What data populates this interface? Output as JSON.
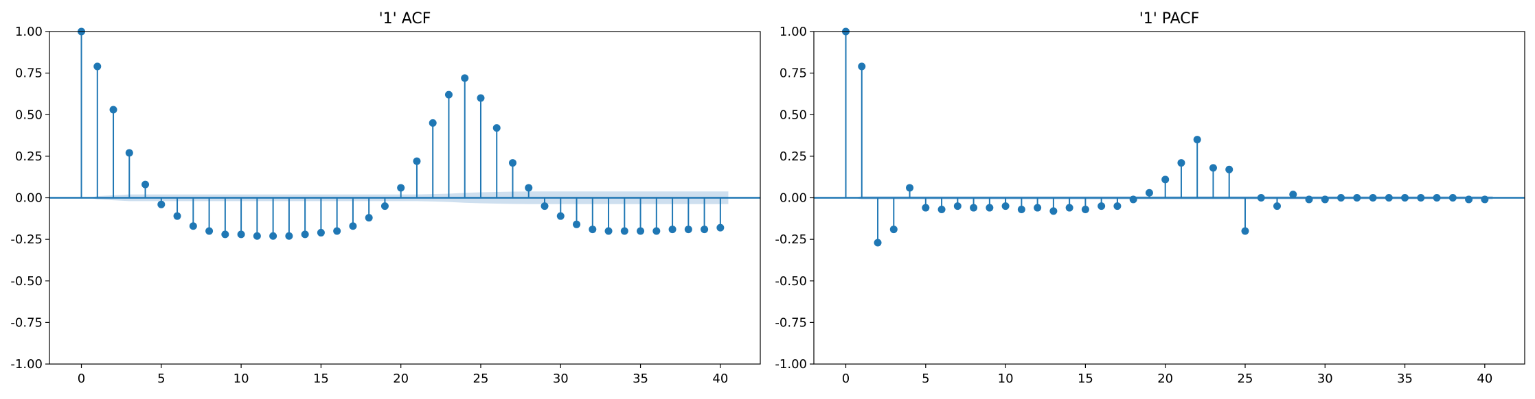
{
  "chart_data": [
    {
      "type": "stem",
      "title": "'1' ACF",
      "xlabel": "",
      "ylabel": "",
      "xlim": [
        -2,
        42.5
      ],
      "ylim": [
        -1.0,
        1.0
      ],
      "xticks": [
        "0",
        "5",
        "10",
        "15",
        "20",
        "25",
        "30",
        "35",
        "40"
      ],
      "yticks": [
        "-1.00",
        "-0.75",
        "-0.50",
        "-0.25",
        "0.00",
        "0.25",
        "0.50",
        "0.75",
        "1.00"
      ],
      "grid": false,
      "lags": [
        0,
        1,
        2,
        3,
        4,
        5,
        6,
        7,
        8,
        9,
        10,
        11,
        12,
        13,
        14,
        15,
        16,
        17,
        18,
        19,
        20,
        21,
        22,
        23,
        24,
        25,
        26,
        27,
        28,
        29,
        30,
        31,
        32,
        33,
        34,
        35,
        36,
        37,
        38,
        39,
        40
      ],
      "values": [
        1.0,
        0.79,
        0.53,
        0.27,
        0.08,
        -0.04,
        -0.11,
        -0.17,
        -0.2,
        -0.22,
        -0.22,
        -0.23,
        -0.23,
        -0.23,
        -0.22,
        -0.21,
        -0.2,
        -0.17,
        -0.12,
        -0.05,
        0.06,
        0.22,
        0.45,
        0.62,
        0.72,
        0.6,
        0.42,
        0.21,
        0.06,
        -0.05,
        -0.11,
        -0.16,
        -0.19,
        -0.2,
        -0.2,
        -0.2,
        -0.2,
        -0.19,
        -0.19,
        -0.19,
        -0.18
      ],
      "confidence_band": [
        0.0,
        0.01,
        0.015,
        0.02,
        0.02,
        0.02,
        0.02,
        0.02,
        0.02,
        0.02,
        0.02,
        0.02,
        0.02,
        0.02,
        0.02,
        0.02,
        0.02,
        0.02,
        0.02,
        0.02,
        0.02,
        0.02,
        0.022,
        0.025,
        0.03,
        0.033,
        0.035,
        0.037,
        0.038,
        0.038,
        0.038,
        0.038,
        0.038,
        0.038,
        0.038,
        0.038,
        0.038,
        0.038,
        0.038,
        0.038,
        0.038
      ]
    },
    {
      "type": "stem",
      "title": "'1' PACF",
      "xlabel": "",
      "ylabel": "",
      "xlim": [
        -2,
        42.5
      ],
      "ylim": [
        -1.0,
        1.0
      ],
      "xticks": [
        "0",
        "5",
        "10",
        "15",
        "20",
        "25",
        "30",
        "35",
        "40"
      ],
      "yticks": [
        "-1.00",
        "-0.75",
        "-0.50",
        "-0.25",
        "0.00",
        "0.25",
        "0.50",
        "0.75",
        "1.00"
      ],
      "grid": false,
      "lags": [
        0,
        1,
        2,
        3,
        4,
        5,
        6,
        7,
        8,
        9,
        10,
        11,
        12,
        13,
        14,
        15,
        16,
        17,
        18,
        19,
        20,
        21,
        22,
        23,
        24,
        25,
        26,
        27,
        28,
        29,
        30,
        31,
        32,
        33,
        34,
        35,
        36,
        37,
        38,
        39,
        40
      ],
      "values": [
        1.0,
        0.79,
        -0.27,
        -0.19,
        0.06,
        -0.06,
        -0.07,
        -0.05,
        -0.06,
        -0.06,
        -0.05,
        -0.07,
        -0.06,
        -0.08,
        -0.06,
        -0.07,
        -0.05,
        -0.05,
        -0.01,
        0.03,
        0.11,
        0.21,
        0.35,
        0.18,
        0.17,
        -0.2,
        0.0,
        -0.05,
        0.02,
        -0.01,
        -0.01,
        0.0,
        0.0,
        0.0,
        0.0,
        0.0,
        0.0,
        0.0,
        0.0,
        -0.01,
        -0.01
      ],
      "confidence_band": [
        0.0,
        0.01,
        0.01,
        0.01,
        0.01,
        0.01,
        0.01,
        0.01,
        0.01,
        0.01,
        0.01,
        0.01,
        0.01,
        0.01,
        0.01,
        0.01,
        0.01,
        0.01,
        0.01,
        0.01,
        0.01,
        0.01,
        0.01,
        0.01,
        0.01,
        0.01,
        0.01,
        0.01,
        0.01,
        0.01,
        0.01,
        0.01,
        0.01,
        0.01,
        0.01,
        0.01,
        0.01,
        0.01,
        0.01,
        0.01,
        0.01
      ]
    }
  ],
  "colors": {
    "stem": "#1f77b4",
    "band": "#c9dbed",
    "zero_line": "#1f77b4"
  }
}
